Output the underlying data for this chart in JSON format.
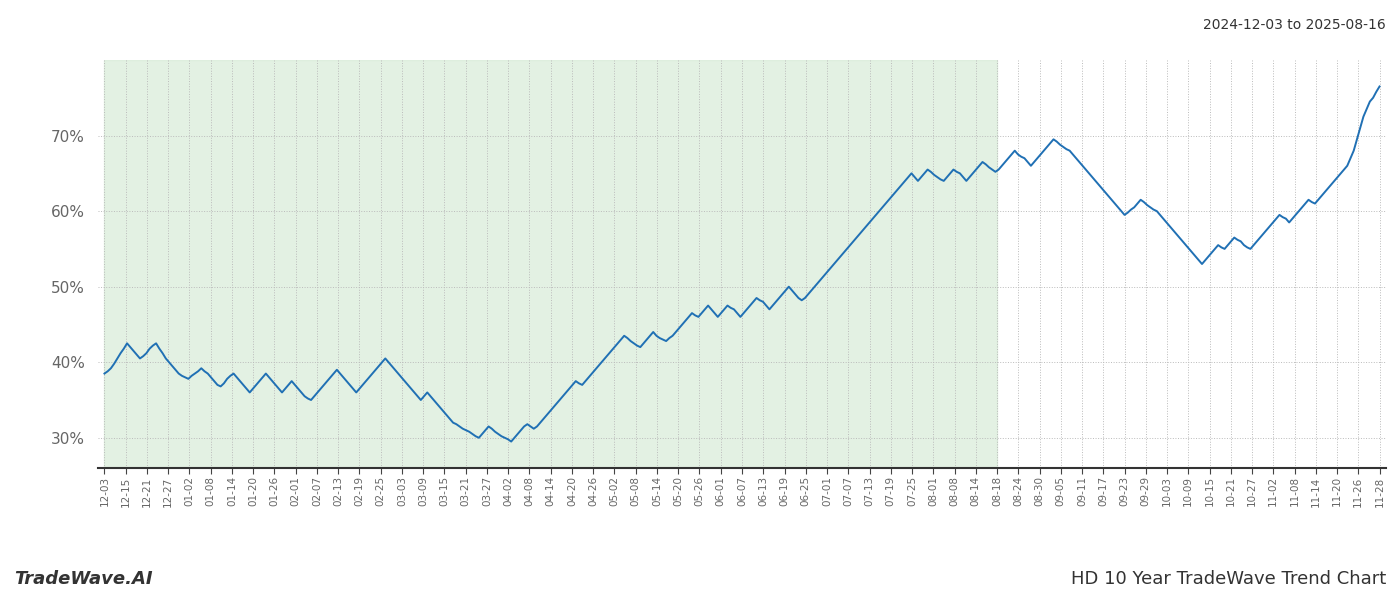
{
  "title_top_right": "2024-12-03 to 2025-08-16",
  "title_bottom_left": "TradeWave.AI",
  "title_bottom_right": "HD 10 Year TradeWave Trend Chart",
  "y_ticks": [
    30,
    40,
    50,
    60,
    70
  ],
  "y_min": 26,
  "y_max": 80,
  "line_color": "#2070b4",
  "line_width": 1.4,
  "shade_color": "#d4ead4",
  "shade_alpha": 0.65,
  "grid_color": "#bbbbbb",
  "grid_style": ":",
  "background_color": "#ffffff",
  "x_labels": [
    "12-03",
    "12-15",
    "12-21",
    "12-27",
    "01-02",
    "01-08",
    "01-14",
    "01-20",
    "01-26",
    "02-01",
    "02-07",
    "02-13",
    "02-19",
    "02-25",
    "03-03",
    "03-09",
    "03-15",
    "03-21",
    "03-27",
    "04-02",
    "04-08",
    "04-14",
    "04-20",
    "04-26",
    "05-02",
    "05-08",
    "05-14",
    "05-20",
    "05-26",
    "06-01",
    "06-07",
    "06-13",
    "06-19",
    "06-25",
    "07-01",
    "07-07",
    "07-13",
    "07-19",
    "07-25",
    "08-01",
    "08-08",
    "08-14",
    "08-18",
    "08-24",
    "08-30",
    "09-05",
    "09-11",
    "09-17",
    "09-23",
    "09-29",
    "10-03",
    "10-09",
    "10-15",
    "10-21",
    "10-27",
    "11-02",
    "11-08",
    "11-14",
    "11-20",
    "11-26",
    "11-28"
  ],
  "shade_end_label": "08-18",
  "values": [
    38.5,
    38.8,
    39.2,
    39.8,
    40.5,
    41.2,
    41.8,
    42.5,
    42.0,
    41.5,
    41.0,
    40.5,
    40.8,
    41.2,
    41.8,
    42.2,
    42.5,
    41.8,
    41.2,
    40.5,
    40.0,
    39.5,
    39.0,
    38.5,
    38.2,
    38.0,
    37.8,
    38.2,
    38.5,
    38.8,
    39.2,
    38.8,
    38.5,
    38.0,
    37.5,
    37.0,
    36.8,
    37.2,
    37.8,
    38.2,
    38.5,
    38.0,
    37.5,
    37.0,
    36.5,
    36.0,
    36.5,
    37.0,
    37.5,
    38.0,
    38.5,
    38.0,
    37.5,
    37.0,
    36.5,
    36.0,
    36.5,
    37.0,
    37.5,
    37.0,
    36.5,
    36.0,
    35.5,
    35.2,
    35.0,
    35.5,
    36.0,
    36.5,
    37.0,
    37.5,
    38.0,
    38.5,
    39.0,
    38.5,
    38.0,
    37.5,
    37.0,
    36.5,
    36.0,
    36.5,
    37.0,
    37.5,
    38.0,
    38.5,
    39.0,
    39.5,
    40.0,
    40.5,
    40.0,
    39.5,
    39.0,
    38.5,
    38.0,
    37.5,
    37.0,
    36.5,
    36.0,
    35.5,
    35.0,
    35.5,
    36.0,
    35.5,
    35.0,
    34.5,
    34.0,
    33.5,
    33.0,
    32.5,
    32.0,
    31.8,
    31.5,
    31.2,
    31.0,
    30.8,
    30.5,
    30.2,
    30.0,
    30.5,
    31.0,
    31.5,
    31.2,
    30.8,
    30.5,
    30.2,
    30.0,
    29.8,
    29.5,
    30.0,
    30.5,
    31.0,
    31.5,
    31.8,
    31.5,
    31.2,
    31.5,
    32.0,
    32.5,
    33.0,
    33.5,
    34.0,
    34.5,
    35.0,
    35.5,
    36.0,
    36.5,
    37.0,
    37.5,
    37.2,
    37.0,
    37.5,
    38.0,
    38.5,
    39.0,
    39.5,
    40.0,
    40.5,
    41.0,
    41.5,
    42.0,
    42.5,
    43.0,
    43.5,
    43.2,
    42.8,
    42.5,
    42.2,
    42.0,
    42.5,
    43.0,
    43.5,
    44.0,
    43.5,
    43.2,
    43.0,
    42.8,
    43.2,
    43.5,
    44.0,
    44.5,
    45.0,
    45.5,
    46.0,
    46.5,
    46.2,
    46.0,
    46.5,
    47.0,
    47.5,
    47.0,
    46.5,
    46.0,
    46.5,
    47.0,
    47.5,
    47.2,
    47.0,
    46.5,
    46.0,
    46.5,
    47.0,
    47.5,
    48.0,
    48.5,
    48.2,
    48.0,
    47.5,
    47.0,
    47.5,
    48.0,
    48.5,
    49.0,
    49.5,
    50.0,
    49.5,
    49.0,
    48.5,
    48.2,
    48.5,
    49.0,
    49.5,
    50.0,
    50.5,
    51.0,
    51.5,
    52.0,
    52.5,
    53.0,
    53.5,
    54.0,
    54.5,
    55.0,
    55.5,
    56.0,
    56.5,
    57.0,
    57.5,
    58.0,
    58.5,
    59.0,
    59.5,
    60.0,
    60.5,
    61.0,
    61.5,
    62.0,
    62.5,
    63.0,
    63.5,
    64.0,
    64.5,
    65.0,
    64.5,
    64.0,
    64.5,
    65.0,
    65.5,
    65.2,
    64.8,
    64.5,
    64.2,
    64.0,
    64.5,
    65.0,
    65.5,
    65.2,
    65.0,
    64.5,
    64.0,
    64.5,
    65.0,
    65.5,
    66.0,
    66.5,
    66.2,
    65.8,
    65.5,
    65.2,
    65.5,
    66.0,
    66.5,
    67.0,
    67.5,
    68.0,
    67.5,
    67.2,
    67.0,
    66.5,
    66.0,
    66.5,
    67.0,
    67.5,
    68.0,
    68.5,
    69.0,
    69.5,
    69.2,
    68.8,
    68.5,
    68.2,
    68.0,
    67.5,
    67.0,
    66.5,
    66.0,
    65.5,
    65.0,
    64.5,
    64.0,
    63.5,
    63.0,
    62.5,
    62.0,
    61.5,
    61.0,
    60.5,
    60.0,
    59.5,
    59.8,
    60.2,
    60.5,
    61.0,
    61.5,
    61.2,
    60.8,
    60.5,
    60.2,
    60.0,
    59.5,
    59.0,
    58.5,
    58.0,
    57.5,
    57.0,
    56.5,
    56.0,
    55.5,
    55.0,
    54.5,
    54.0,
    53.5,
    53.0,
    53.5,
    54.0,
    54.5,
    55.0,
    55.5,
    55.2,
    55.0,
    55.5,
    56.0,
    56.5,
    56.2,
    56.0,
    55.5,
    55.2,
    55.0,
    55.5,
    56.0,
    56.5,
    57.0,
    57.5,
    58.0,
    58.5,
    59.0,
    59.5,
    59.2,
    59.0,
    58.5,
    59.0,
    59.5,
    60.0,
    60.5,
    61.0,
    61.5,
    61.2,
    61.0,
    61.5,
    62.0,
    62.5,
    63.0,
    63.5,
    64.0,
    64.5,
    65.0,
    65.5,
    66.0,
    67.0,
    68.0,
    69.5,
    71.0,
    72.5,
    73.5,
    74.5,
    75.0,
    75.8,
    76.5
  ]
}
